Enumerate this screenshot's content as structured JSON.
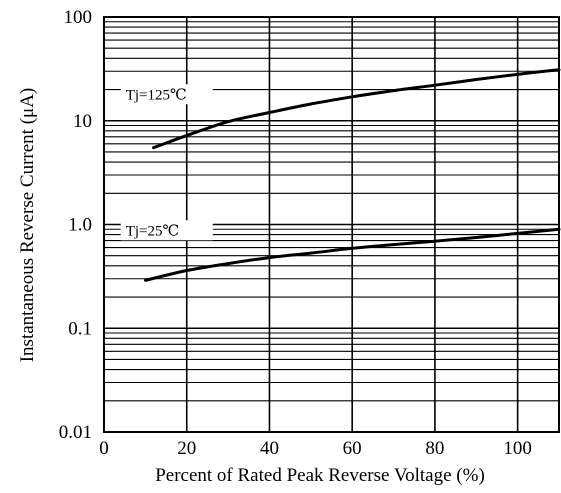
{
  "chart_data": {
    "type": "line",
    "title": "",
    "xlabel": "Percent of Rated Peak Reverse Voltage (%)",
    "ylabel": "Instantaneous Reverse Current (μA)",
    "x_scale": "linear",
    "y_scale": "log",
    "xlim": [
      0,
      110
    ],
    "ylim": [
      0.01,
      100
    ],
    "x_ticks": [
      "0",
      "20",
      "40",
      "60",
      "80",
      "100"
    ],
    "y_ticks": [
      "0.01",
      "0.1",
      "1.0",
      "10",
      "100"
    ],
    "grid": true,
    "series": [
      {
        "name": "Tj=125℃",
        "x": [
          12,
          20,
          30,
          40,
          50,
          60,
          70,
          80,
          90,
          100,
          110
        ],
        "y": [
          5.5,
          7.2,
          9.8,
          12.0,
          14.5,
          17.0,
          19.5,
          22.0,
          25.0,
          28.0,
          31.0
        ]
      },
      {
        "name": "Tj=25℃",
        "x": [
          10,
          20,
          30,
          40,
          50,
          60,
          70,
          80,
          90,
          100,
          110
        ],
        "y": [
          0.29,
          0.36,
          0.42,
          0.48,
          0.53,
          0.59,
          0.64,
          0.69,
          0.75,
          0.82,
          0.9
        ]
      }
    ]
  }
}
